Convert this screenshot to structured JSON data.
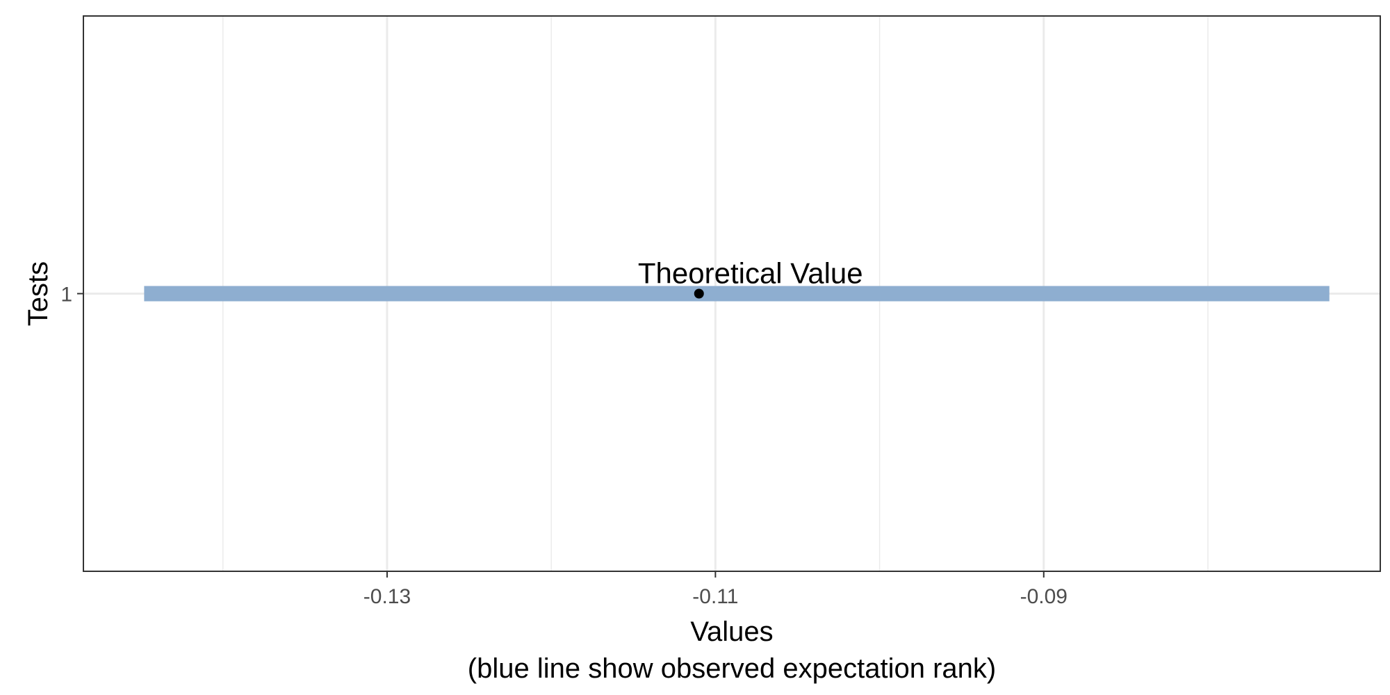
{
  "chart_data": {
    "type": "scatter",
    "xlabel": "Values",
    "xlabel_note": "(blue line show observed expectation rank)",
    "ylabel": "Tests",
    "xlim": [
      -0.1485,
      -0.0695
    ],
    "x_ticks": [
      -0.13,
      -0.11,
      -0.09
    ],
    "x_tick_labels": [
      "-0.13",
      "-0.11",
      "-0.09"
    ],
    "x_minor_ticks": [
      -0.14,
      -0.12,
      -0.1,
      -0.08
    ],
    "y_categories": [
      "1"
    ],
    "grid": true,
    "interval": {
      "category": "1",
      "x_start": -0.1448,
      "x_end": -0.0726,
      "color": "#8eaed0"
    },
    "point": {
      "category": "1",
      "x": -0.111,
      "color": "#000000",
      "label": "Theoretical Value"
    },
    "colors": {
      "grid": "#ebebeb",
      "panel_border": "#333333",
      "tick_label": "#4d4d4d"
    }
  }
}
